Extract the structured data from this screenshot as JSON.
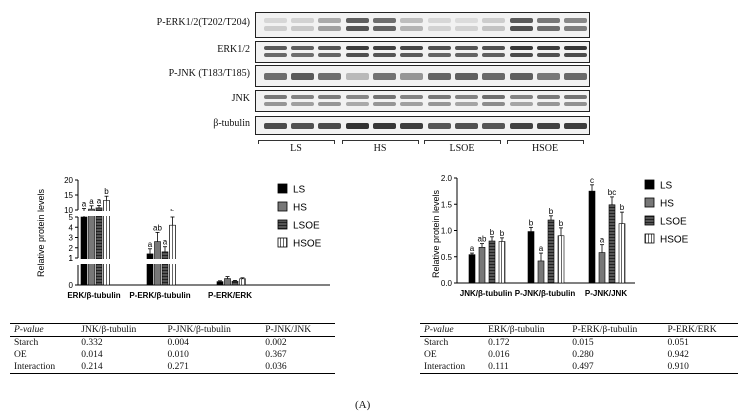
{
  "blot": {
    "rows": [
      {
        "label": "P-ERK1/2(T202/T204)",
        "kind": "perk"
      },
      {
        "label": "ERK1/2",
        "kind": "erk"
      },
      {
        "label": "P-JNK (T183/T185)",
        "kind": "pjnk"
      },
      {
        "label": "JNK",
        "kind": "jnk"
      },
      {
        "label": "β-tubulin",
        "kind": "tub"
      }
    ],
    "groups": [
      "LS",
      "HS",
      "LSOE",
      "HSOE"
    ]
  },
  "chart_left": {
    "type": "bar",
    "ylabel": "Relative protein levels",
    "categories": [
      "ERK/β-tubulin",
      "P-ERK/β-tubulin",
      "P-ERK/ERK"
    ],
    "legend": [
      "LS",
      "HS",
      "LSOE",
      "HSOE"
    ],
    "yticks_top": [
      "20",
      "15",
      "10"
    ],
    "yticks_mid": [
      "5",
      "4",
      "3",
      "2",
      "1"
    ],
    "yticks_bot": [
      "1",
      "0"
    ],
    "letters": [
      [
        "a",
        "a",
        "a",
        "b"
      ],
      [
        "a",
        "ab",
        "a",
        "b"
      ],
      [
        "",
        "",
        "",
        ""
      ]
    ]
  },
  "chart_right": {
    "type": "bar",
    "ylabel": "Relative protein levels",
    "categories": [
      "JNK/β-tubulin",
      "P-JNK/β-tubulin",
      "P-JNK/JNK"
    ],
    "legend": [
      "LS",
      "HS",
      "LSOE",
      "HSOE"
    ],
    "yticks": [
      "2.0",
      "1.5",
      "1.0",
      "0.5",
      "0.0"
    ],
    "letters": [
      [
        "a",
        "ab",
        "b",
        "b"
      ],
      [
        "b",
        "a",
        "b",
        "b"
      ],
      [
        "c",
        "a",
        "bc",
        "b"
      ]
    ]
  },
  "chart_data": [
    {
      "type": "bar",
      "ylabel": "Relative protein levels",
      "categories": [
        "ERK/β-tubulin",
        "P-ERK/β-tubulin",
        "P-ERK/ERK"
      ],
      "series": [
        {
          "name": "LS",
          "values": [
            9.9,
            1.4,
            0.17
          ]
        },
        {
          "name": "HS",
          "values": [
            10.3,
            2.6,
            0.32
          ]
        },
        {
          "name": "LSOE",
          "values": [
            10.7,
            1.6,
            0.19
          ]
        },
        {
          "name": "HSOE",
          "values": [
            13.2,
            4.2,
            0.31
          ]
        }
      ],
      "errors": [
        [
          0.6,
          0.5,
          0.04
        ],
        [
          1.1,
          0.9,
          0.1
        ],
        [
          0.8,
          0.5,
          0.04
        ],
        [
          1.4,
          0.8,
          0.05
        ]
      ],
      "ylim": [
        0,
        20
      ]
    },
    {
      "type": "bar",
      "ylabel": "Relative protein levels",
      "categories": [
        "JNK/β-tubulin",
        "P-JNK/β-tubulin",
        "P-JNK/JNK"
      ],
      "series": [
        {
          "name": "LS",
          "values": [
            0.54,
            0.98,
            1.75
          ]
        },
        {
          "name": "HS",
          "values": [
            0.68,
            0.42,
            0.58
          ]
        },
        {
          "name": "LSOE",
          "values": [
            0.8,
            1.2,
            1.49
          ]
        },
        {
          "name": "HSOE",
          "values": [
            0.79,
            0.9,
            1.13
          ]
        }
      ],
      "errors": [
        [
          0.03,
          0.08,
          0.12
        ],
        [
          0.07,
          0.15,
          0.15
        ],
        [
          0.08,
          0.08,
          0.15
        ],
        [
          0.07,
          0.15,
          0.22
        ]
      ],
      "ylim": [
        0,
        2.0
      ]
    }
  ],
  "table_left": {
    "headers": [
      "P-value",
      "JNK/β-tubulin",
      "P-JNK/β-tubulin",
      "P-JNK/JNK"
    ],
    "rows": [
      [
        "Starch",
        "0.332",
        "0.004",
        "0.002"
      ],
      [
        "OE",
        "0.014",
        "0.010",
        "0.367"
      ],
      [
        "Interaction",
        "0.214",
        "0.271",
        "0.036"
      ]
    ]
  },
  "table_right": {
    "headers": [
      "P-value",
      "ERK/β-tubulin",
      "P-ERK/β-tubulin",
      "P-ERK/ERK"
    ],
    "rows": [
      [
        "Starch",
        "0.172",
        "0.015",
        "0.051"
      ],
      [
        "OE",
        "0.016",
        "0.280",
        "0.942"
      ],
      [
        "Interaction",
        "0.111",
        "0.497",
        "0.910"
      ]
    ]
  },
  "figure_label": "(A)"
}
